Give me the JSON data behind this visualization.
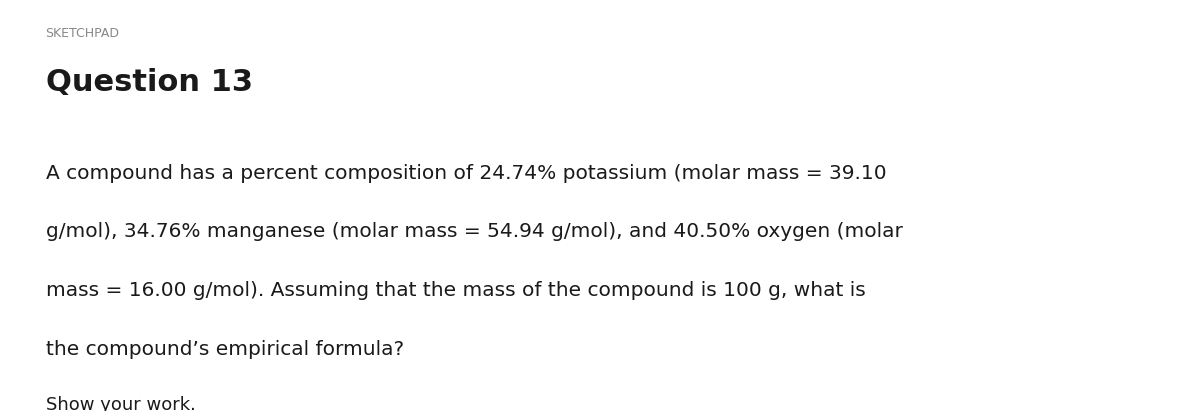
{
  "background_color": "#ffffff",
  "sketchpad_label": "SKETCHPAD",
  "sketchpad_color": "#888888",
  "sketchpad_fontsize": 9,
  "question_label": "Question 13",
  "question_fontsize": 22,
  "question_color": "#1a1a1a",
  "body_lines": [
    "A compound has a percent composition of 24.74% potassium (molar mass = 39.10",
    "g/mol), 34.76% manganese (molar mass = 54.94 g/mol), and 40.50% oxygen (molar",
    "mass = 16.00 g/mol). Assuming that the mass of the compound is 100 g, what is",
    "the compound’s empirical formula?"
  ],
  "body_fontsize": 14.5,
  "body_color": "#1a1a1a",
  "show_work_label": "Show your work.",
  "show_work_fontsize": 13,
  "show_work_color": "#1a1a1a",
  "fig_width": 12.0,
  "fig_height": 4.11
}
